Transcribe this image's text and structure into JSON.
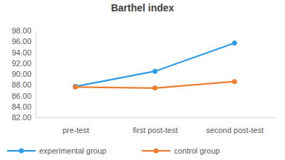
{
  "chart_data": {
    "type": "line",
    "title": "Barthel index",
    "categories": [
      "pre-test",
      "first post-test",
      "second post-test"
    ],
    "series": [
      {
        "name": "experimental group",
        "color": "#2e9be6",
        "values": [
          87.7,
          90.5,
          95.7
        ],
        "marker": "circle"
      },
      {
        "name": "control group",
        "color": "#ed7d31",
        "values": [
          87.6,
          87.4,
          88.6
        ],
        "marker": "circle"
      }
    ],
    "ylim": [
      82,
      98
    ],
    "yticks": [
      {
        "value": 82,
        "label": "82.00"
      },
      {
        "value": 84,
        "label": "84.00"
      },
      {
        "value": 86,
        "label": "86.00"
      },
      {
        "value": 88,
        "label": "88.00"
      },
      {
        "value": 90,
        "label": "90.00"
      },
      {
        "value": 92,
        "label": "92.00"
      },
      {
        "value": 94,
        "label": "94.00"
      },
      {
        "value": 96,
        "label": "96.00"
      },
      {
        "value": 98,
        "label": "98.00"
      }
    ],
    "grid": false,
    "legend": "bottom"
  }
}
